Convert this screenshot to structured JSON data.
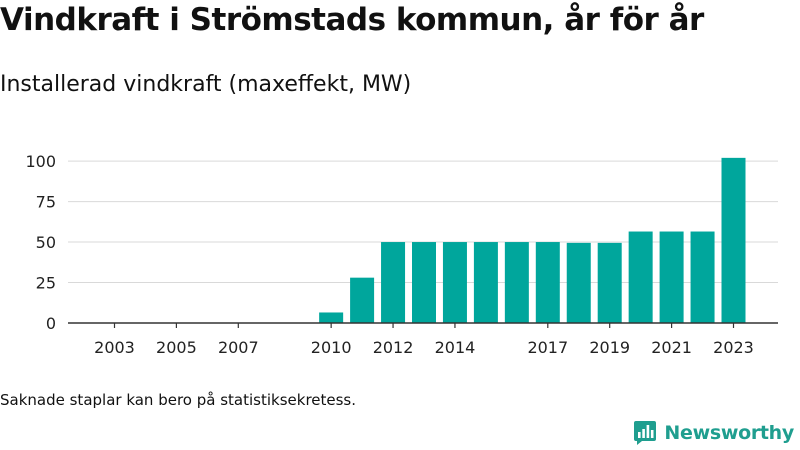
{
  "header": {
    "title": "Vindkraft i Strömstads kommun, år för år",
    "subtitle": "Installerad vindkraft (maxeffekt, MW)"
  },
  "footer": {
    "note": "Saknade staplar kan bero på statistiksekretess.",
    "brand": "Newsworthy"
  },
  "colors": {
    "bar": "#00a69c",
    "grid": "#d9d9d9",
    "axis": "#333333",
    "brand": "#1f9e8f"
  },
  "chart_data": {
    "type": "bar",
    "categories": [
      "2003",
      "2004",
      "2005",
      "2006",
      "2007",
      "2008",
      "2009",
      "2010",
      "2011",
      "2012",
      "2013",
      "2014",
      "2015",
      "2016",
      "2017",
      "2018",
      "2019",
      "2020",
      "2021",
      "2022",
      "2023"
    ],
    "values": [
      0,
      0,
      0,
      0,
      0,
      0,
      0,
      6.5,
      28,
      50,
      50,
      50,
      50,
      50,
      50,
      49.5,
      49.5,
      56.5,
      56.5,
      56.5,
      102
    ],
    "x_tick_labels": [
      "2003",
      "2005",
      "2007",
      "2010",
      "2012",
      "2014",
      "2017",
      "2019",
      "2021",
      "2023"
    ],
    "y_ticks": [
      0,
      25,
      50,
      75,
      100
    ],
    "ylim": [
      0,
      105
    ],
    "grid": true,
    "legend": "none"
  }
}
